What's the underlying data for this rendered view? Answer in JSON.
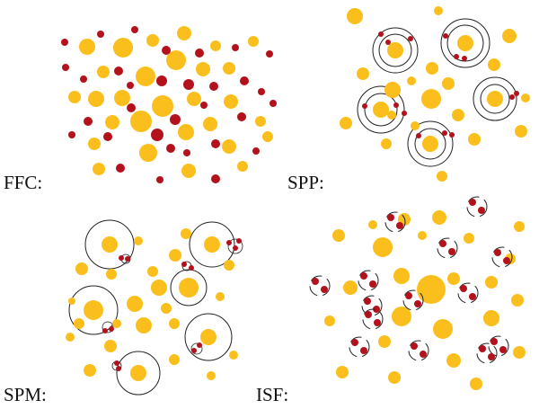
{
  "panels": [
    {
      "label": "FFC:"
    },
    {
      "label": "SPP:"
    },
    {
      "label": "SPM:"
    },
    {
      "label": "ISF:"
    }
  ]
}
